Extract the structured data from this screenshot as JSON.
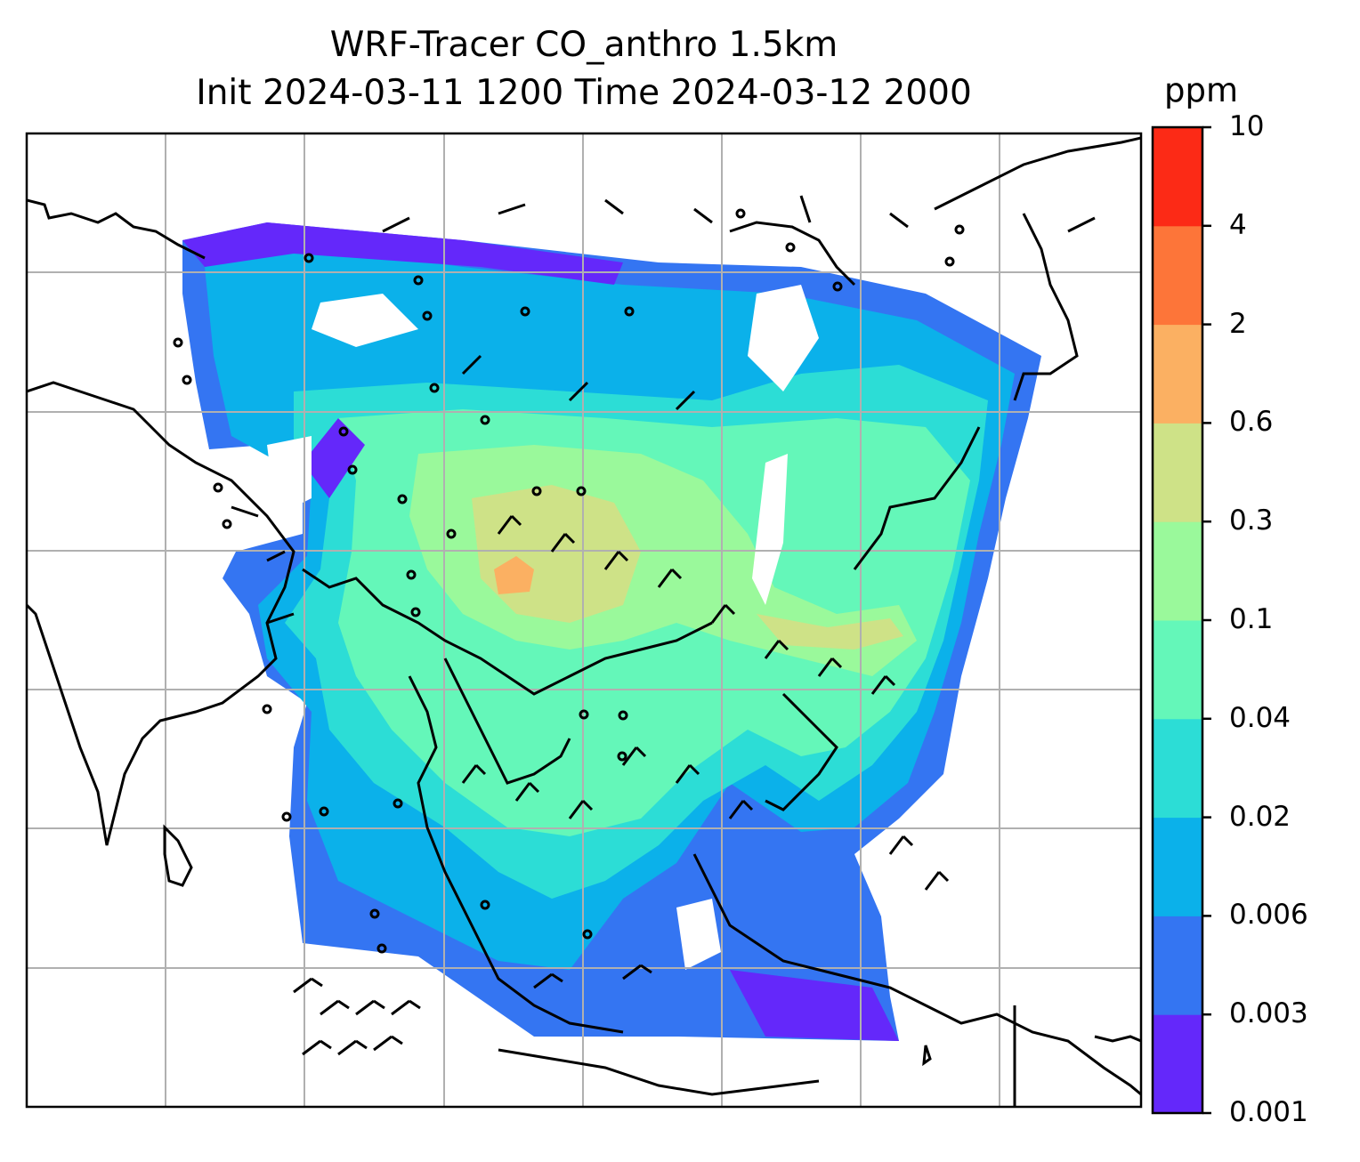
{
  "title": {
    "line1": "WRF-Tracer CO_anthro 1.5km",
    "line2": "Init 2024-03-11 1200 Time 2024-03-12 2000"
  },
  "colorbar": {
    "units": "ppm",
    "ticks": [
      "0.001",
      "0.003",
      "0.006",
      "0.02",
      "0.04",
      "0.1",
      "0.3",
      "0.6",
      "2",
      "4",
      "10"
    ],
    "colors": [
      "#6428fa",
      "#3475f2",
      "#0bb1ea",
      "#2cddd6",
      "#64f7b9",
      "#9af99b",
      "#cee287",
      "#fbb062",
      "#fd7539",
      "#fc2a16"
    ]
  },
  "map": {
    "region": "South and East Asia",
    "gridlines": true,
    "wind_barbs": true,
    "coastlines": true
  }
}
